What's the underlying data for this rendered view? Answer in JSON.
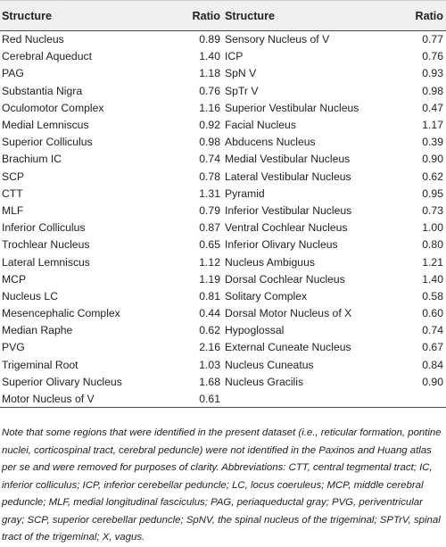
{
  "headers": {
    "structure": "Structure",
    "ratio": "Ratio"
  },
  "left_rows": [
    {
      "structure": "Red Nucleus",
      "ratio": "0.89"
    },
    {
      "structure": "Cerebral Aqueduct",
      "ratio": "1.40"
    },
    {
      "structure": "PAG",
      "ratio": "1.18"
    },
    {
      "structure": "Substantia Nigra",
      "ratio": "0.76"
    },
    {
      "structure": "Oculomotor Complex",
      "ratio": "1.16"
    },
    {
      "structure": "Medial Lemniscus",
      "ratio": "0.92"
    },
    {
      "structure": "Superior Colliculus",
      "ratio": "0.98"
    },
    {
      "structure": "Brachium IC",
      "ratio": "0.74"
    },
    {
      "structure": "SCP",
      "ratio": "0.78"
    },
    {
      "structure": "CTT",
      "ratio": "1.31"
    },
    {
      "structure": "MLF",
      "ratio": "0.79"
    },
    {
      "structure": "Inferior Colliculus",
      "ratio": "0.87"
    },
    {
      "structure": "Trochlear Nucleus",
      "ratio": "0.65"
    },
    {
      "structure": "Lateral Lemniscus",
      "ratio": "1.12"
    },
    {
      "structure": "MCP",
      "ratio": "1.19"
    },
    {
      "structure": "Nucleus LC",
      "ratio": "0.81"
    },
    {
      "structure": "Mesencephalic Complex",
      "ratio": "0.44"
    },
    {
      "structure": "Median Raphe",
      "ratio": "0.62"
    },
    {
      "structure": "PVG",
      "ratio": "2.16"
    },
    {
      "structure": "Trigeminal Root",
      "ratio": "1.03"
    },
    {
      "structure": "Superior Olivary Nucleus",
      "ratio": "1.68"
    },
    {
      "structure": "Motor Nucleus of V",
      "ratio": "0.61"
    }
  ],
  "right_rows": [
    {
      "structure": "Sensory Nucleus of V",
      "ratio": "0.77"
    },
    {
      "structure": "ICP",
      "ratio": "0.76"
    },
    {
      "structure": "SpN V",
      "ratio": "0.93"
    },
    {
      "structure": "SpTr V",
      "ratio": "0.98"
    },
    {
      "structure": "Superior Vestibular Nucleus",
      "ratio": "0.47"
    },
    {
      "structure": "Facial Nucleus",
      "ratio": "1.17"
    },
    {
      "structure": "Abducens Nucleus",
      "ratio": "0.39"
    },
    {
      "structure": "Medial Vestibular Nucleus",
      "ratio": "0.90"
    },
    {
      "structure": "Lateral Vestibular Nucleus",
      "ratio": "0.62"
    },
    {
      "structure": "Pyramid",
      "ratio": "0.95"
    },
    {
      "structure": "Inferior Vestibular Nucleus",
      "ratio": "0.73"
    },
    {
      "structure": "Ventral Cochlear Nucleus",
      "ratio": "1.00"
    },
    {
      "structure": "Inferior Olivary Nucleus",
      "ratio": "0.80"
    },
    {
      "structure": "Nucleus Ambiguus",
      "ratio": "1.21"
    },
    {
      "structure": "Dorsal Cochlear Nucleus",
      "ratio": "1.40"
    },
    {
      "structure": "Solitary Complex",
      "ratio": "0.58"
    },
    {
      "structure": "Dorsal Motor Nucleus of X",
      "ratio": "0.60"
    },
    {
      "structure": "Hypoglossal",
      "ratio": "0.74"
    },
    {
      "structure": "External Cuneate Nucleus",
      "ratio": "0.67"
    },
    {
      "structure": "Nucleus Cuneatus",
      "ratio": "0.84"
    },
    {
      "structure": "Nucleus Gracilis",
      "ratio": "0.90"
    },
    {
      "structure": "",
      "ratio": ""
    }
  ],
  "note": "Note that some regions that were identified in the present dataset (i.e., reticular formation, pontine nuclei, corticospinal tract, cerebral peduncle) were not identified in the Paxinos and Huang atlas per se and were removed for purposes of clarity. Abbreviations: CTT, central tegmental tract; IC, inferior colliculus; ICP, inferior cerebellar peduncle; LC, locus coeruleus; MCP, middle cerebral peduncle; MLF, medial longitudinal fasciculus; PAG, periaqueductal gray; PVG, periventricular gray; SCP, superior cerebellar peduncle; SpNV, the spinal nucleus of the trigeminal; SPTrV, spinal tract of the trigeminal; X, vagus."
}
